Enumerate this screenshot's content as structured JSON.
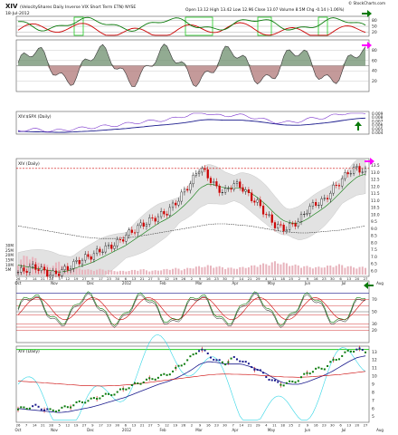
{
  "header": {
    "symbol": "XIV",
    "name": "(VelocityShares Daily Inverse VIX Short Term ETN) NYSE",
    "date": "18-Jul-2012",
    "ohlc": "Open 13.12  High 13.42  Low 12.96  Close 13.07  Volume 8.5M  Chg -0.14 (-1.06%)",
    "brand": "© StockCharts.com"
  },
  "panels": {
    "ratio_label": "XIV:$SPX (Daily)",
    "price_label": "XIV (Daily)",
    "pnf_label": "XIV (Daily)"
  },
  "colors": {
    "red": "#cc0000",
    "green": "#0a7a0a",
    "bright_green": "#22cc22",
    "purple": "#7a33cc",
    "navy": "#1a1a8c",
    "magenta": "#ff00ff",
    "band": "#e2e2e2",
    "volume": "#e8b4bd",
    "cyan": "#33d6e6"
  },
  "chart_data": [
    {
      "type": "line",
      "panel": "top-oscillator",
      "ylim": [
        0,
        100
      ],
      "ticks": [
        "80",
        "50",
        "20"
      ],
      "series": []
    },
    {
      "type": "area",
      "panel": "second-oscillator",
      "ylim": [
        0,
        100
      ],
      "ticks": [
        "80",
        "60",
        "40",
        "20"
      ],
      "series": []
    },
    {
      "type": "line",
      "panel": "ratio",
      "ticks": [
        "0.009",
        "0.008",
        "0.007",
        "0.006",
        "0.005",
        "0.004"
      ],
      "series": []
    },
    {
      "type": "line",
      "panel": "price",
      "ylim": [
        5.6,
        14.0
      ],
      "price_ticks": [
        "13.5",
        "13.0",
        "12.5",
        "12.0",
        "11.5",
        "11.0",
        "10.5",
        "10.0",
        "9.5",
        "9.0",
        "8.5",
        "8.0",
        "7.5",
        "7.0",
        "6.5",
        "6.0"
      ],
      "volume_ticks": [
        "30M",
        "25M",
        "20M",
        "15M",
        "10M",
        "5M"
      ],
      "resistance_level": 13.3,
      "x_months": [
        "Oct",
        "Nov",
        "Dec",
        "2012",
        "Feb",
        "Mar",
        "Apr",
        "May",
        "Jun",
        "Jul",
        "Aug"
      ],
      "x_days": [
        "26",
        "7",
        "14",
        "21",
        "28",
        "5",
        "12",
        "19",
        "27",
        "9",
        "17",
        "23",
        "30",
        "6",
        "13",
        "21",
        "27",
        "5",
        "12",
        "19",
        "26",
        "2",
        "9",
        "16",
        "23",
        "30",
        "7",
        "14",
        "21",
        "29",
        "4",
        "11",
        "18",
        "25",
        "2",
        "9",
        "16",
        "23",
        "30",
        "6",
        "13",
        "20",
        "27"
      ],
      "close": [
        5.9,
        6.1,
        6.3,
        6.0,
        5.7,
        5.9,
        6.2,
        6.6,
        6.9,
        7.1,
        7.5,
        7.7,
        8.0,
        8.5,
        8.9,
        9.3,
        9.6,
        9.9,
        10.2,
        10.8,
        11.6,
        12.4,
        13.4,
        12.7,
        11.9,
        11.6,
        12.2,
        12.0,
        11.3,
        10.8,
        10.0,
        9.3,
        9.0,
        9.2,
        9.6,
        10.4,
        10.8,
        11.0,
        11.8,
        12.4,
        13.1,
        13.3,
        13.07
      ],
      "sma_short": [
        6.4,
        6.3,
        6.2,
        6.1,
        6.0,
        5.9,
        6.0,
        6.2,
        6.4,
        6.6,
        6.9,
        7.2,
        7.5,
        7.8,
        8.2,
        8.6,
        9.0,
        9.4,
        9.7,
        10.1,
        10.6,
        11.2,
        11.9,
        12.2,
        12.1,
        11.9,
        11.9,
        11.9,
        11.6,
        11.2,
        10.7,
        10.1,
        9.6,
        9.4,
        9.4,
        9.7,
        10.1,
        10.5,
        11.0,
        11.6,
        12.2,
        12.7,
        12.9
      ],
      "sma_long": [
        9.2,
        9.1,
        9.0,
        8.9,
        8.8,
        8.7,
        8.6,
        8.5,
        8.4,
        8.35,
        8.3,
        8.3,
        8.3,
        8.35,
        8.4,
        8.5,
        8.6,
        8.7,
        8.8,
        8.9,
        9.0,
        9.1,
        9.2,
        9.3,
        9.35,
        9.35,
        9.3,
        9.25,
        9.2,
        9.1,
        9.0,
        8.9,
        8.8,
        8.75,
        8.7,
        8.7,
        8.75,
        8.8,
        8.85,
        8.9,
        9.0,
        9.1,
        9.2
      ],
      "volume_m": [
        14,
        22,
        18,
        12,
        9,
        15,
        8,
        7,
        6,
        5,
        6,
        5,
        4,
        4,
        5,
        6,
        4,
        5,
        6,
        7,
        6,
        8,
        9,
        10,
        9,
        8,
        7,
        8,
        9,
        11,
        12,
        14,
        13,
        11,
        10,
        9,
        8,
        9,
        10,
        11,
        9,
        8,
        8.5
      ]
    },
    {
      "type": "line",
      "panel": "lower-oscillator",
      "ylim": [
        0,
        100
      ],
      "ticks": [
        "70",
        "50",
        "30",
        "20"
      ],
      "series": []
    },
    {
      "type": "scatter",
      "panel": "point-and-figure",
      "ticks": [
        "13",
        "12",
        "11",
        "10",
        "9",
        "8",
        "7",
        "6",
        "5"
      ],
      "x_months": [
        "Oct",
        "Nov",
        "Dec",
        "2012",
        "Feb",
        "Mar",
        "Apr",
        "May",
        "Jun",
        "Jul",
        "Aug"
      ],
      "series": []
    }
  ]
}
